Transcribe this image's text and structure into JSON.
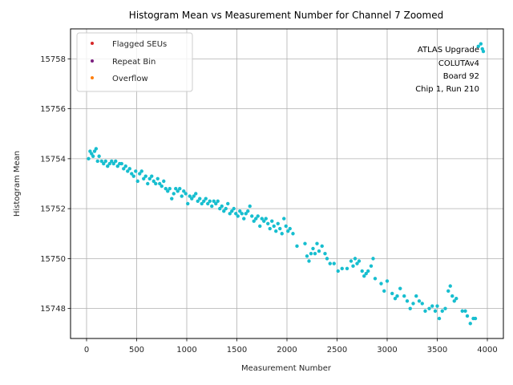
{
  "chart_data": {
    "type": "scatter",
    "title": "Histogram Mean vs Measurement Number for Channel 7 Zoomed",
    "xlabel": "Measurement Number",
    "ylabel": "Histogram Mean",
    "xlim": [
      -160,
      4160
    ],
    "ylim": [
      15746.8,
      15759.2
    ],
    "xticks": [
      0,
      500,
      1000,
      1500,
      2000,
      2500,
      3000,
      3500,
      4000
    ],
    "xtick_labels": [
      "0",
      "500",
      "1000",
      "1500",
      "2000",
      "2500",
      "3000",
      "3500",
      "4000"
    ],
    "yticks": [
      15748,
      15750,
      15752,
      15754,
      15756,
      15758
    ],
    "ytick_labels": [
      "15748",
      "15750",
      "15752",
      "15754",
      "15756",
      "15758"
    ],
    "grid": true,
    "legend_position": "top-left",
    "legend": [
      {
        "label": "Flagged SEUs",
        "color": "#d62728"
      },
      {
        "label": "Repeat Bin",
        "color": "#7b1f7f"
      },
      {
        "label": "Overflow",
        "color": "#ff7f0e"
      }
    ],
    "annotation": [
      "ATLAS Upgrade",
      "COLUTAv4",
      "Board 92",
      "Chip 1, Run 210"
    ],
    "annotation_position": "top-right",
    "series": [
      {
        "name": "Histogram Mean",
        "color": "#17becf",
        "points": [
          [
            20,
            15754.0
          ],
          [
            35,
            15754.3
          ],
          [
            50,
            15754.2
          ],
          [
            65,
            15754.1
          ],
          [
            80,
            15754.3
          ],
          [
            95,
            15754.4
          ],
          [
            110,
            15753.9
          ],
          [
            125,
            15754.1
          ],
          [
            150,
            15753.9
          ],
          [
            170,
            15753.8
          ],
          [
            190,
            15753.9
          ],
          [
            210,
            15753.7
          ],
          [
            230,
            15753.8
          ],
          [
            250,
            15753.9
          ],
          [
            270,
            15753.8
          ],
          [
            290,
            15753.9
          ],
          [
            310,
            15753.7
          ],
          [
            330,
            15753.8
          ],
          [
            350,
            15753.8
          ],
          [
            370,
            15753.6
          ],
          [
            390,
            15753.7
          ],
          [
            410,
            15753.5
          ],
          [
            430,
            15753.6
          ],
          [
            450,
            15753.4
          ],
          [
            470,
            15753.3
          ],
          [
            490,
            15753.5
          ],
          [
            510,
            15753.1
          ],
          [
            530,
            15753.4
          ],
          [
            550,
            15753.5
          ],
          [
            570,
            15753.2
          ],
          [
            590,
            15753.3
          ],
          [
            610,
            15753.0
          ],
          [
            630,
            15753.2
          ],
          [
            650,
            15753.3
          ],
          [
            670,
            15753.1
          ],
          [
            690,
            15753.0
          ],
          [
            710,
            15753.2
          ],
          [
            730,
            15753.0
          ],
          [
            750,
            15752.9
          ],
          [
            770,
            15753.1
          ],
          [
            790,
            15752.8
          ],
          [
            810,
            15752.7
          ],
          [
            830,
            15752.8
          ],
          [
            850,
            15752.4
          ],
          [
            870,
            15752.6
          ],
          [
            890,
            15752.8
          ],
          [
            910,
            15752.7
          ],
          [
            930,
            15752.8
          ],
          [
            950,
            15752.5
          ],
          [
            970,
            15752.7
          ],
          [
            990,
            15752.6
          ],
          [
            1010,
            15752.2
          ],
          [
            1030,
            15752.5
          ],
          [
            1050,
            15752.4
          ],
          [
            1070,
            15752.5
          ],
          [
            1090,
            15752.6
          ],
          [
            1110,
            15752.3
          ],
          [
            1130,
            15752.4
          ],
          [
            1150,
            15752.2
          ],
          [
            1170,
            15752.3
          ],
          [
            1190,
            15752.4
          ],
          [
            1210,
            15752.2
          ],
          [
            1230,
            15752.3
          ],
          [
            1250,
            15752.1
          ],
          [
            1270,
            15752.3
          ],
          [
            1290,
            15752.2
          ],
          [
            1310,
            15752.3
          ],
          [
            1330,
            15752.0
          ],
          [
            1350,
            15752.1
          ],
          [
            1370,
            15751.9
          ],
          [
            1390,
            15752.0
          ],
          [
            1410,
            15752.2
          ],
          [
            1430,
            15751.8
          ],
          [
            1450,
            15751.9
          ],
          [
            1470,
            15752.0
          ],
          [
            1490,
            15751.8
          ],
          [
            1510,
            15751.7
          ],
          [
            1530,
            15751.9
          ],
          [
            1550,
            15751.8
          ],
          [
            1570,
            15751.6
          ],
          [
            1590,
            15751.8
          ],
          [
            1610,
            15751.9
          ],
          [
            1630,
            15752.1
          ],
          [
            1650,
            15751.7
          ],
          [
            1670,
            15751.5
          ],
          [
            1690,
            15751.6
          ],
          [
            1710,
            15751.7
          ],
          [
            1730,
            15751.3
          ],
          [
            1750,
            15751.6
          ],
          [
            1770,
            15751.5
          ],
          [
            1790,
            15751.6
          ],
          [
            1810,
            15751.4
          ],
          [
            1830,
            15751.2
          ],
          [
            1850,
            15751.5
          ],
          [
            1870,
            15751.3
          ],
          [
            1890,
            15751.1
          ],
          [
            1910,
            15751.4
          ],
          [
            1930,
            15751.2
          ],
          [
            1950,
            15751.0
          ],
          [
            1970,
            15751.6
          ],
          [
            1990,
            15751.3
          ],
          [
            2010,
            15751.1
          ],
          [
            2030,
            15751.2
          ],
          [
            2060,
            15751.0
          ],
          [
            2100,
            15750.5
          ],
          [
            2180,
            15750.6
          ],
          [
            2200,
            15750.1
          ],
          [
            2220,
            15749.9
          ],
          [
            2240,
            15750.2
          ],
          [
            2260,
            15750.4
          ],
          [
            2280,
            15750.2
          ],
          [
            2300,
            15750.6
          ],
          [
            2320,
            15750.3
          ],
          [
            2350,
            15750.5
          ],
          [
            2380,
            15750.2
          ],
          [
            2400,
            15750.0
          ],
          [
            2430,
            15749.8
          ],
          [
            2470,
            15749.8
          ],
          [
            2510,
            15749.5
          ],
          [
            2550,
            15749.6
          ],
          [
            2600,
            15749.6
          ],
          [
            2640,
            15749.9
          ],
          [
            2660,
            15749.7
          ],
          [
            2680,
            15750.0
          ],
          [
            2700,
            15749.8
          ],
          [
            2720,
            15749.9
          ],
          [
            2750,
            15749.5
          ],
          [
            2770,
            15749.3
          ],
          [
            2790,
            15749.4
          ],
          [
            2810,
            15749.5
          ],
          [
            2840,
            15749.7
          ],
          [
            2860,
            15750.0
          ],
          [
            2880,
            15749.2
          ],
          [
            2940,
            15749.0
          ],
          [
            2970,
            15748.7
          ],
          [
            3000,
            15749.1
          ],
          [
            3050,
            15748.6
          ],
          [
            3080,
            15748.4
          ],
          [
            3100,
            15748.5
          ],
          [
            3130,
            15748.8
          ],
          [
            3170,
            15748.5
          ],
          [
            3200,
            15748.3
          ],
          [
            3230,
            15748.0
          ],
          [
            3260,
            15748.2
          ],
          [
            3290,
            15748.5
          ],
          [
            3320,
            15748.3
          ],
          [
            3350,
            15748.2
          ],
          [
            3380,
            15747.9
          ],
          [
            3420,
            15748.0
          ],
          [
            3450,
            15748.1
          ],
          [
            3480,
            15747.9
          ],
          [
            3500,
            15748.1
          ],
          [
            3520,
            15747.6
          ],
          [
            3550,
            15747.9
          ],
          [
            3580,
            15748.0
          ],
          [
            3610,
            15748.7
          ],
          [
            3630,
            15748.9
          ],
          [
            3650,
            15748.5
          ],
          [
            3670,
            15748.3
          ],
          [
            3690,
            15748.4
          ],
          [
            3750,
            15747.9
          ],
          [
            3780,
            15747.9
          ],
          [
            3800,
            15747.7
          ],
          [
            3830,
            15747.4
          ],
          [
            3860,
            15747.6
          ],
          [
            3880,
            15747.6
          ],
          [
            3910,
            15758.5
          ],
          [
            3935,
            15758.6
          ],
          [
            3950,
            15758.4
          ],
          [
            3960,
            15758.3
          ]
        ]
      }
    ]
  }
}
